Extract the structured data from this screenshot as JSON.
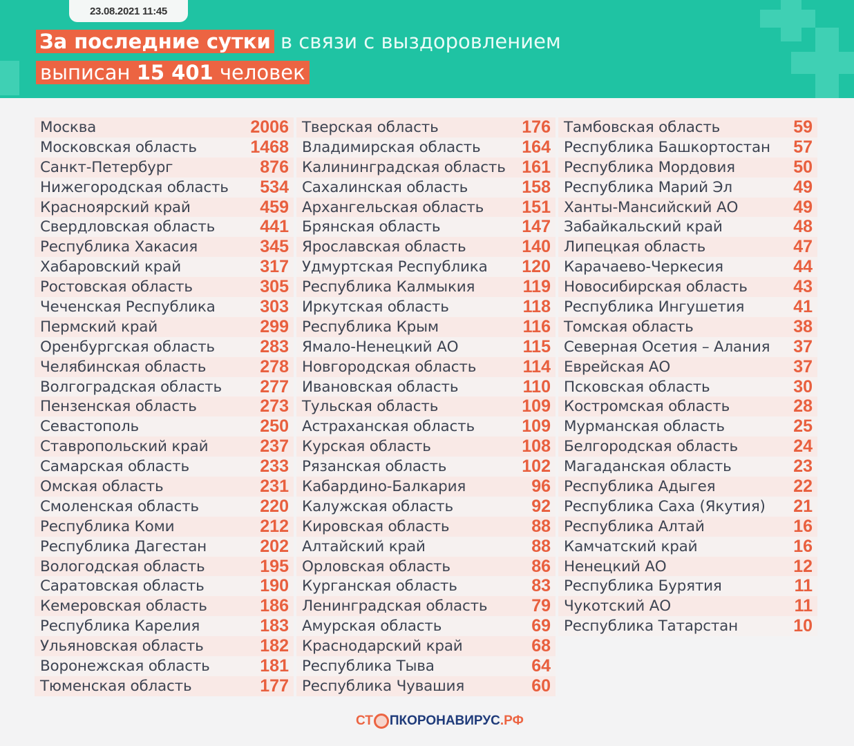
{
  "header": {
    "date": "23.08.2021 11:45",
    "line1_highlight": "За последние сутки",
    "line1_rest": "в связи с выздоровлением",
    "line2_pre": "выписан",
    "line2_number": "15 401",
    "line2_post": "человек"
  },
  "colors": {
    "teal": "#1fc3a3",
    "accent": "#ec6442",
    "navy": "#1f3b7a"
  },
  "columns": [
    [
      {
        "name": "Москва",
        "value": "2006"
      },
      {
        "name": "Московская область",
        "value": "1468"
      },
      {
        "name": "Санкт-Петербург",
        "value": "876"
      },
      {
        "name": "Нижегородская область",
        "value": "534"
      },
      {
        "name": "Красноярский край",
        "value": "459"
      },
      {
        "name": "Свердловская область",
        "value": "441"
      },
      {
        "name": "Республика Хакасия",
        "value": "345"
      },
      {
        "name": "Хабаровский край",
        "value": "317"
      },
      {
        "name": "Ростовская область",
        "value": "305"
      },
      {
        "name": "Чеченская Республика",
        "value": "303"
      },
      {
        "name": "Пермский край",
        "value": "299"
      },
      {
        "name": "Оренбургская область",
        "value": "283"
      },
      {
        "name": "Челябинская область",
        "value": "278"
      },
      {
        "name": "Волгоградская область",
        "value": "277"
      },
      {
        "name": "Пензенская область",
        "value": "273"
      },
      {
        "name": "Севастополь",
        "value": "250"
      },
      {
        "name": "Ставропольский край",
        "value": "237"
      },
      {
        "name": "Самарская область",
        "value": "233"
      },
      {
        "name": "Омская область",
        "value": "231"
      },
      {
        "name": "Смоленская область",
        "value": "220"
      },
      {
        "name": "Республика Коми",
        "value": "212"
      },
      {
        "name": "Республика Дагестан",
        "value": "202"
      },
      {
        "name": "Вологодская область",
        "value": "195"
      },
      {
        "name": "Саратовская область",
        "value": "190"
      },
      {
        "name": "Кемеровская область",
        "value": "186"
      },
      {
        "name": "Республика Карелия",
        "value": "183"
      },
      {
        "name": "Ульяновская область",
        "value": "182"
      },
      {
        "name": "Воронежская область",
        "value": "181"
      },
      {
        "name": "Тюменская область",
        "value": "177"
      }
    ],
    [
      {
        "name": "Тверская область",
        "value": "176"
      },
      {
        "name": "Владимирская область",
        "value": "164"
      },
      {
        "name": "Калининградская область",
        "value": "161"
      },
      {
        "name": "Сахалинская область",
        "value": "158"
      },
      {
        "name": "Архангельская область",
        "value": "151"
      },
      {
        "name": "Брянская область",
        "value": "147"
      },
      {
        "name": "Ярославская область",
        "value": "140"
      },
      {
        "name": "Удмуртская Республика",
        "value": "120"
      },
      {
        "name": "Республика Калмыкия",
        "value": "119"
      },
      {
        "name": "Иркутская область",
        "value": "118"
      },
      {
        "name": "Республика Крым",
        "value": "116"
      },
      {
        "name": "Ямало-Ненецкий АО",
        "value": "115"
      },
      {
        "name": "Новгородская область",
        "value": "114"
      },
      {
        "name": "Ивановская область",
        "value": "110"
      },
      {
        "name": "Тульская область",
        "value": "109"
      },
      {
        "name": "Астраханская область",
        "value": "109"
      },
      {
        "name": "Курская область",
        "value": "108"
      },
      {
        "name": "Рязанская область",
        "value": "102"
      },
      {
        "name": "Кабардино-Балкария",
        "value": "96"
      },
      {
        "name": "Калужская область",
        "value": "92"
      },
      {
        "name": "Кировская область",
        "value": "88"
      },
      {
        "name": "Алтайский край",
        "value": "88"
      },
      {
        "name": "Орловская область",
        "value": "86"
      },
      {
        "name": "Курганская область",
        "value": "83"
      },
      {
        "name": "Ленинградская область",
        "value": "79"
      },
      {
        "name": "Амурская область",
        "value": "69"
      },
      {
        "name": "Краснодарский край",
        "value": "68"
      },
      {
        "name": "Республика Тыва",
        "value": "64"
      },
      {
        "name": "Республика Чувашия",
        "value": "60"
      }
    ],
    [
      {
        "name": "Тамбовская область",
        "value": "59"
      },
      {
        "name": "Республика Башкортостан",
        "value": "57"
      },
      {
        "name": "Республика Мордовия",
        "value": "50"
      },
      {
        "name": "Республика Марий Эл",
        "value": "49"
      },
      {
        "name": "Ханты-Мансийский АО",
        "value": "49"
      },
      {
        "name": "Забайкальский край",
        "value": "48"
      },
      {
        "name": "Липецкая область",
        "value": "47"
      },
      {
        "name": "Карачаево-Черкесия",
        "value": "44"
      },
      {
        "name": "Новосибирская область",
        "value": "43"
      },
      {
        "name": "Республика Ингушетия",
        "value": "41"
      },
      {
        "name": "Томская область",
        "value": "38"
      },
      {
        "name": "Северная Осетия – Алания",
        "value": "37"
      },
      {
        "name": "Еврейская АО",
        "value": "37"
      },
      {
        "name": "Псковская область",
        "value": "30"
      },
      {
        "name": "Костромская область",
        "value": "28"
      },
      {
        "name": "Мурманская область",
        "value": "25"
      },
      {
        "name": "Белгородская область",
        "value": "24"
      },
      {
        "name": "Магаданская область",
        "value": "23"
      },
      {
        "name": "Республика Адыгея",
        "value": "22"
      },
      {
        "name": "Республика Саха (Якутия)",
        "value": "21"
      },
      {
        "name": "Республика Алтай",
        "value": "16"
      },
      {
        "name": "Камчатский край",
        "value": "16"
      },
      {
        "name": "Ненецкий АО",
        "value": "12"
      },
      {
        "name": "Республика Бурятия",
        "value": "11"
      },
      {
        "name": "Чукотский АО",
        "value": "11"
      },
      {
        "name": "Республика Татарстан",
        "value": "10"
      }
    ]
  ],
  "footer": {
    "logo_part1": "СТ",
    "logo_part2": "ПКОРОНАВИРУС",
    "logo_part3": ".РФ"
  }
}
